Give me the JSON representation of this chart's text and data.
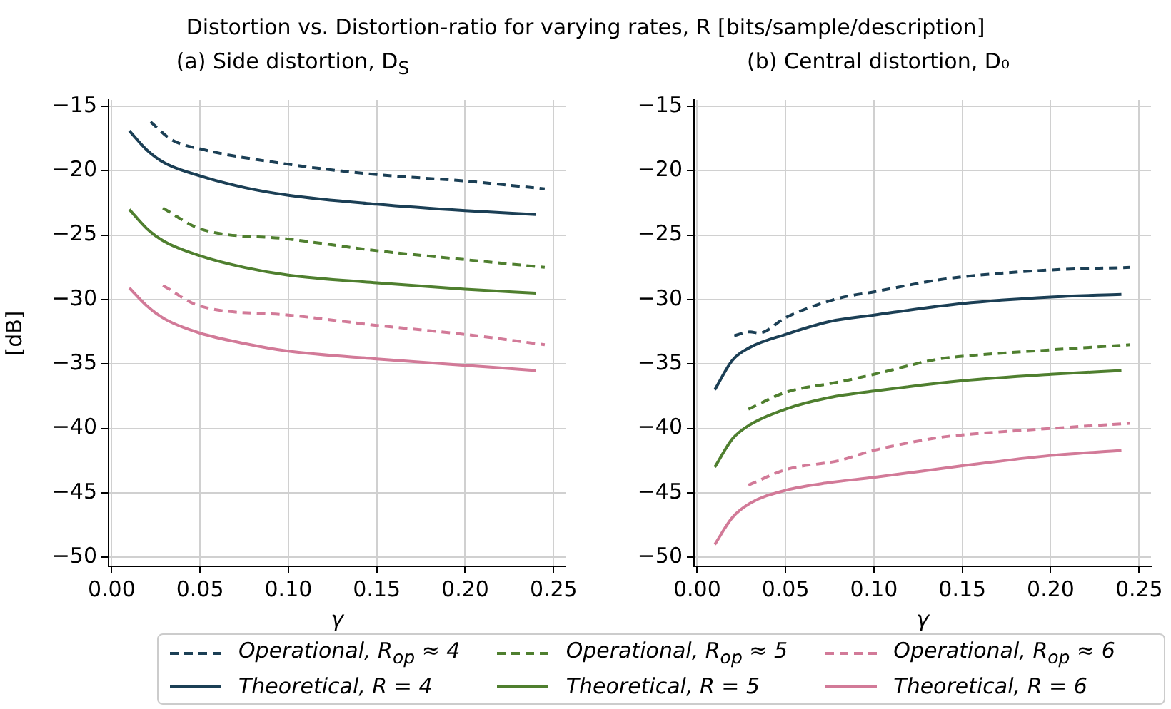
{
  "chart_data": [
    {
      "type": "line",
      "title": "Distortion vs. Distortion-ratio for varying rates, R [bits/sample/description]",
      "subtitle": "(a) Side distortion, D$_{S}$",
      "xlabel": "γ",
      "ylabel": "[dB]",
      "xlim": [
        -0.00175,
        0.25675
      ],
      "ylim": [
        -50.7,
        -14.5
      ],
      "xticks": [
        {
          "value": 0,
          "label": "0.00"
        },
        {
          "value": 0.05,
          "label": "0.05"
        },
        {
          "value": 0.1,
          "label": "0.10"
        },
        {
          "value": 0.15,
          "label": "0.15"
        },
        {
          "value": 0.2,
          "label": "0.20"
        },
        {
          "value": 0.25,
          "label": "0.25"
        }
      ],
      "yticks": [
        {
          "value": -50,
          "label": "−50"
        },
        {
          "value": -45,
          "label": "−45"
        },
        {
          "value": -40,
          "label": "−40"
        },
        {
          "value": -35,
          "label": "−35"
        },
        {
          "value": -30,
          "label": "−30"
        },
        {
          "value": -25,
          "label": "−25"
        },
        {
          "value": -20,
          "label": "−20"
        },
        {
          "value": -15,
          "label": "−15"
        }
      ],
      "grid": true,
      "legend": "bottom",
      "series": [
        {
          "name": "Operational, R$_{op}$ ≈ 4",
          "color": "#1b3f55",
          "line_style": "dashed",
          "x": [
            0.022,
            0.034,
            0.05,
            0.1,
            0.15,
            0.2,
            0.245
          ],
          "values": [
            -16.2,
            -17.6,
            -18.3,
            -19.5,
            -20.3,
            -20.8,
            -21.4
          ]
        },
        {
          "name": "Theoretical, R = 4",
          "color": "#1b3f55",
          "line_style": "solid",
          "x": [
            0.01,
            0.02,
            0.03,
            0.05,
            0.075,
            0.1,
            0.15,
            0.2,
            0.24
          ],
          "values": [
            -16.9,
            -18.4,
            -19.4,
            -20.4,
            -21.3,
            -21.9,
            -22.6,
            -23.1,
            -23.4
          ]
        },
        {
          "name": "Operational, R$_{op}$ ≈ 5",
          "color": "#4f7f2f",
          "line_style": "dashed",
          "x": [
            0.029,
            0.05,
            0.1,
            0.15,
            0.2,
            0.245
          ],
          "values": [
            -22.9,
            -24.5,
            -25.3,
            -26.2,
            -26.9,
            -27.5
          ]
        },
        {
          "name": "Theoretical, R = 5",
          "color": "#4f7f2f",
          "line_style": "solid",
          "x": [
            0.01,
            0.02,
            0.03,
            0.05,
            0.075,
            0.1,
            0.15,
            0.2,
            0.24
          ],
          "values": [
            -23.0,
            -24.5,
            -25.5,
            -26.6,
            -27.5,
            -28.1,
            -28.7,
            -29.2,
            -29.5
          ]
        },
        {
          "name": "Operational, R$_{op}$ ≈ 6",
          "color": "#d27a98",
          "line_style": "dashed",
          "x": [
            0.029,
            0.05,
            0.1,
            0.15,
            0.2,
            0.245
          ],
          "values": [
            -28.9,
            -30.5,
            -31.2,
            -32.0,
            -32.7,
            -33.5
          ]
        },
        {
          "name": "Theoretical, R = 6",
          "color": "#d27a98",
          "line_style": "solid",
          "x": [
            0.01,
            0.02,
            0.03,
            0.05,
            0.075,
            0.1,
            0.15,
            0.2,
            0.24
          ],
          "values": [
            -29.1,
            -30.5,
            -31.5,
            -32.6,
            -33.4,
            -34.0,
            -34.6,
            -35.1,
            -35.5
          ]
        }
      ]
    },
    {
      "type": "line",
      "subtitle": "(b) Central distortion, D₀",
      "xlabel": "γ",
      "xlim": [
        -0.00175,
        0.25675
      ],
      "ylim": [
        -50.7,
        -14.5
      ],
      "xticks": [
        {
          "value": 0,
          "label": "0.00"
        },
        {
          "value": 0.05,
          "label": "0.05"
        },
        {
          "value": 0.1,
          "label": "0.10"
        },
        {
          "value": 0.15,
          "label": "0.15"
        },
        {
          "value": 0.2,
          "label": "0.20"
        },
        {
          "value": 0.25,
          "label": "0.25"
        }
      ],
      "yticks": [
        {
          "value": -50,
          "label": "−50"
        },
        {
          "value": -45,
          "label": "−45"
        },
        {
          "value": -40,
          "label": "−40"
        },
        {
          "value": -35,
          "label": "−35"
        },
        {
          "value": -30,
          "label": "−30"
        },
        {
          "value": -25,
          "label": "−25"
        },
        {
          "value": -20,
          "label": "−20"
        },
        {
          "value": -15,
          "label": "−15"
        }
      ],
      "grid": true,
      "series": [
        {
          "color": "#1b3f55",
          "line_style": "dashed",
          "x": [
            0.021,
            0.03,
            0.035,
            0.05,
            0.08,
            0.1,
            0.14,
            0.2,
            0.245
          ],
          "values": [
            -32.8,
            -32.5,
            -32.6,
            -31.4,
            -29.9,
            -29.4,
            -28.4,
            -27.7,
            -27.5
          ]
        },
        {
          "color": "#1b3f55",
          "line_style": "solid",
          "x": [
            0.01,
            0.02,
            0.03,
            0.05,
            0.075,
            0.1,
            0.15,
            0.2,
            0.24
          ],
          "values": [
            -37.0,
            -34.7,
            -33.7,
            -32.7,
            -31.7,
            -31.2,
            -30.3,
            -29.8,
            -29.6
          ]
        },
        {
          "color": "#4f7f2f",
          "line_style": "dashed",
          "x": [
            0.029,
            0.05,
            0.08,
            0.1,
            0.137,
            0.15,
            0.2,
            0.245
          ],
          "values": [
            -38.5,
            -37.2,
            -36.4,
            -35.8,
            -34.6,
            -34.4,
            -33.9,
            -33.5
          ]
        },
        {
          "color": "#4f7f2f",
          "line_style": "solid",
          "x": [
            0.01,
            0.02,
            0.03,
            0.05,
            0.075,
            0.1,
            0.15,
            0.2,
            0.24
          ],
          "values": [
            -43.0,
            -40.8,
            -39.7,
            -38.5,
            -37.6,
            -37.1,
            -36.3,
            -35.8,
            -35.5
          ]
        },
        {
          "color": "#d27a98",
          "line_style": "dashed",
          "x": [
            0.029,
            0.05,
            0.08,
            0.1,
            0.137,
            0.15,
            0.2,
            0.245
          ],
          "values": [
            -44.4,
            -43.2,
            -42.5,
            -41.7,
            -40.7,
            -40.5,
            -40.0,
            -39.6
          ]
        },
        {
          "color": "#d27a98",
          "line_style": "solid",
          "x": [
            0.01,
            0.02,
            0.03,
            0.05,
            0.075,
            0.1,
            0.15,
            0.2,
            0.24
          ],
          "values": [
            -49.0,
            -46.9,
            -45.8,
            -44.8,
            -44.2,
            -43.8,
            -42.9,
            -42.1,
            -41.7
          ]
        }
      ]
    }
  ]
}
